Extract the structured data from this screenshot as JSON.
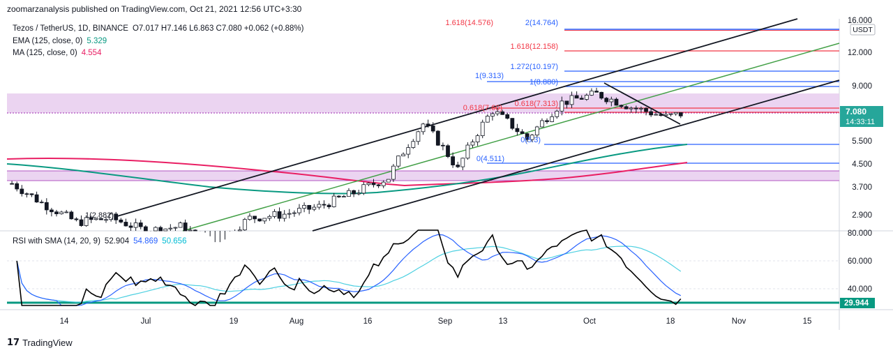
{
  "header": {
    "published": "zoomarzanalysis published on TradingView.com, Oct 21, 2021 12:56 UTC+3:30"
  },
  "legend": {
    "symbol": "Tezos / TetherUS, 1D, BINANCE",
    "ohlc": "O7.017  H7.146  L6.863  C7.080  +0.062 (+0.88%)",
    "ema_label": "EMA (125, close, 0)",
    "ema_value": "5.329",
    "ma_label": "MA (125, close, 0)",
    "ma_value": "4.554",
    "rsi_label": "RSI with SMA (14, 20, 9)",
    "rsi_value": "52.904",
    "rsi_ma_value": "54.869",
    "rsi_sma_value": "50.656"
  },
  "axis": {
    "currency": "USDT",
    "price_ticks": [
      "16.000",
      "12.000",
      "9.000",
      "7.080",
      "5.500",
      "4.500",
      "3.700",
      "2.900"
    ],
    "last_price": "7.080",
    "countdown": "14:33:11",
    "rsi_ticks": [
      "80.000",
      "60.000",
      "40.000"
    ],
    "rsi_last": "29.944",
    "x_ticks": [
      "14",
      "Jul",
      "19",
      "Aug",
      "16",
      "Sep",
      "13",
      "Oct",
      "18",
      "Nov",
      "15"
    ]
  },
  "fib_labels": [
    {
      "text": "1.618(14.576)",
      "color": "#f23645"
    },
    {
      "text": "2(14.764)",
      "color": "#2962ff"
    },
    {
      "text": "1.618(12.158)",
      "color": "#f23645"
    },
    {
      "text": "1.272(10.197)",
      "color": "#2962ff"
    },
    {
      "text": "1(9.313)",
      "color": "#2962ff"
    },
    {
      "text": "1(8.880)",
      "color": "#2962ff"
    },
    {
      "text": "0.618(7.60)",
      "color": "#f23645"
    },
    {
      "text": "0.618(7.313)",
      "color": "#f23645"
    },
    {
      "text": "0(5.3)",
      "color": "#2962ff"
    },
    {
      "text": "0(4.511)",
      "color": "#2962ff"
    },
    {
      "text": "1(2.882)",
      "color": "#131722"
    }
  ],
  "colors": {
    "up": "#26a69a",
    "down": "#ef5350",
    "candle": "#131722",
    "ema": "#089981",
    "ma": "#e91e63",
    "rsi": "#000000",
    "rsi_ma": "#2962ff",
    "rsi_sma": "#4dd0e1",
    "zone": "#e1bee7"
  },
  "footer": {
    "brand": "TradingView"
  },
  "chart_data": {
    "type": "candlestick",
    "title": "Tezos / TetherUS, 1D, BINANCE",
    "x_range": [
      "2021-06-07",
      "2021-11-22"
    ],
    "y_scale": "log",
    "y_ticks": [
      16,
      12,
      9,
      5.5,
      4.5,
      3.7,
      2.9
    ],
    "close_series": {
      "x": [
        "2021-06-08",
        "2021-06-14",
        "2021-06-21",
        "2021-06-28",
        "2021-07-05",
        "2021-07-12",
        "2021-07-19",
        "2021-07-26",
        "2021-08-02",
        "2021-08-09",
        "2021-08-16",
        "2021-08-23",
        "2021-08-30",
        "2021-09-06",
        "2021-09-13",
        "2021-09-20",
        "2021-09-27",
        "2021-10-04",
        "2021-10-11",
        "2021-10-18",
        "2021-10-21"
      ],
      "y": [
        3.9,
        3.3,
        2.8,
        2.9,
        2.6,
        2.7,
        2.3,
        2.9,
        3.0,
        3.2,
        3.6,
        4.1,
        6.5,
        4.4,
        7.3,
        5.7,
        7.8,
        8.4,
        7.5,
        6.9,
        7.08
      ]
    },
    "ema_125_last": 5.329,
    "ma_125_last": 4.554,
    "rsi_last": 52.904,
    "rsi_ticks": [
      80,
      60,
      40
    ],
    "rsi_level": 29.944
  }
}
